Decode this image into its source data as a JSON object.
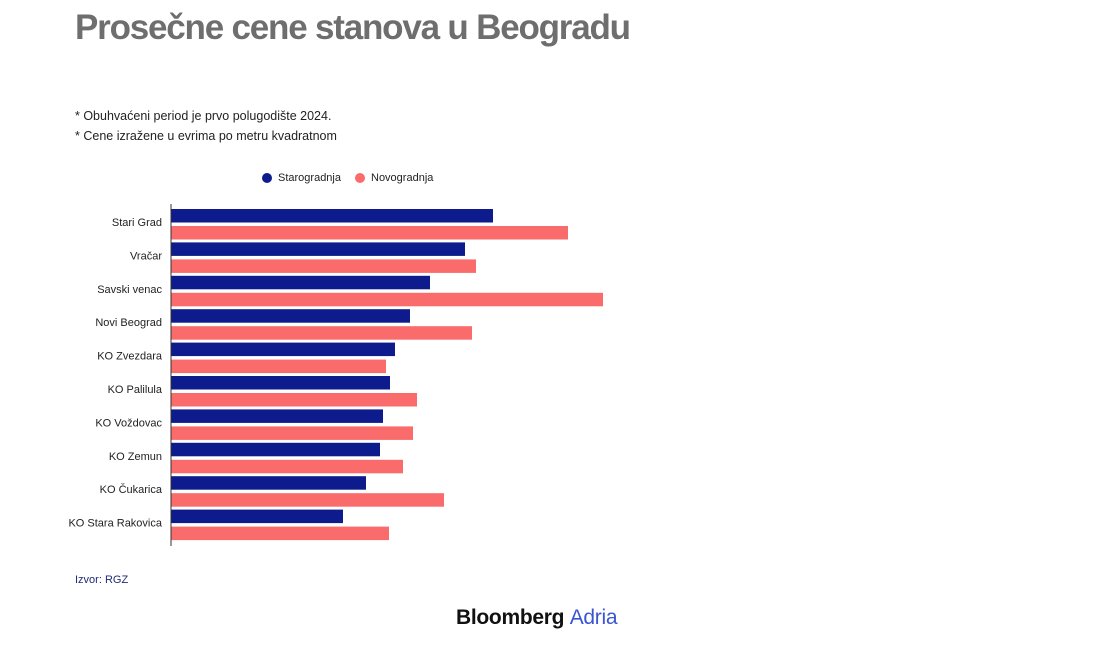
{
  "title": "Prosečne cene stanova u Beogradu",
  "notes": [
    "* Obuhvaćeni period je prvo polugodište 2024.",
    "* Cene izražene u evrima po metru kvadratnom"
  ],
  "source": "Izvor: RGZ",
  "logo": {
    "brand": "Bloomberg",
    "accent": "Adria",
    "accent_color": "#3a55d4"
  },
  "chart_data": {
    "type": "bar",
    "orientation": "horizontal",
    "categories": [
      "Stari Grad",
      "Vračar",
      "Savski venac",
      "Novi Beograd",
      "KO Zvezdara",
      "KO Palilula",
      "KO Voždovac",
      "KO Zemun",
      "KO Čukarica",
      "KO Stara Rakovica"
    ],
    "series": [
      {
        "name": "Starogradnja",
        "color": "#0d1b8c",
        "values": [
          3220,
          2940,
          2590,
          2390,
          2240,
          2190,
          2120,
          2090,
          1950,
          1720
        ]
      },
      {
        "name": "Novogradnja",
        "color": "#fa6b6b",
        "values": [
          3970,
          3050,
          4320,
          3010,
          2150,
          2460,
          2420,
          2320,
          2730,
          2180
        ]
      }
    ],
    "xlim": [
      0,
      7000
    ],
    "grid": false,
    "legend_position": "top"
  }
}
